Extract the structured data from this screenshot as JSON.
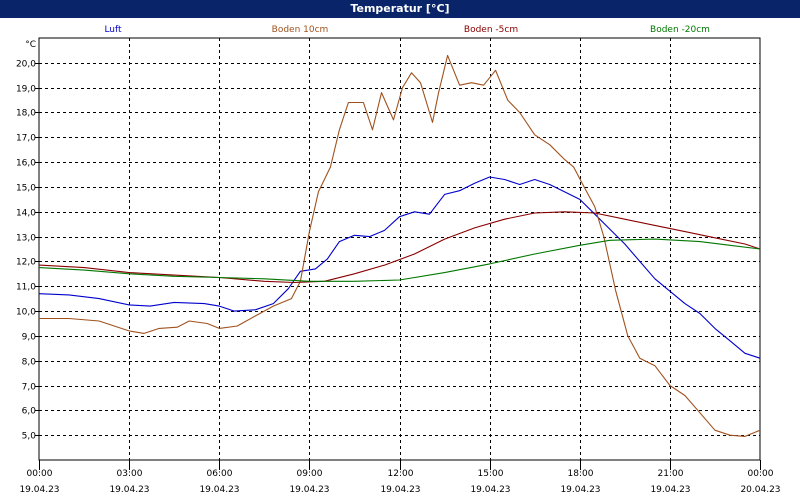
{
  "window": {
    "title": "Temperatur [°C]"
  },
  "chart_data": {
    "type": "line",
    "title": "Temperatur [°C]",
    "ylabel": "°C",
    "ylim": [
      4.0,
      21.0
    ],
    "yticks": [
      "5,0",
      "6,0",
      "7,0",
      "8,0",
      "9,0",
      "10,0",
      "11,0",
      "12,0",
      "13,0",
      "14,0",
      "15,0",
      "16,0",
      "17,0",
      "18,0",
      "19,0",
      "20,0"
    ],
    "ytick_values": [
      5,
      6,
      7,
      8,
      9,
      10,
      11,
      12,
      13,
      14,
      15,
      16,
      17,
      18,
      19,
      20
    ],
    "xlim": [
      0,
      24
    ],
    "xticks": [
      {
        "time": "00:00",
        "date": "19.04.23",
        "hour": 0
      },
      {
        "time": "03:00",
        "date": "19.04.23",
        "hour": 3
      },
      {
        "time": "06:00",
        "date": "19.04.23",
        "hour": 6
      },
      {
        "time": "09:00",
        "date": "19.04.23",
        "hour": 9
      },
      {
        "time": "12:00",
        "date": "19.04.23",
        "hour": 12
      },
      {
        "time": "15:00",
        "date": "19.04.23",
        "hour": 15
      },
      {
        "time": "18:00",
        "date": "19.04.23",
        "hour": 18
      },
      {
        "time": "21:00",
        "date": "19.04.23",
        "hour": 21
      },
      {
        "time": "00:00",
        "date": "20.04.23",
        "hour": 24
      }
    ],
    "grid": true,
    "legend_position": "top",
    "series": [
      {
        "name": "Luft",
        "color": "#0000cc",
        "points": [
          [
            0,
            10.7
          ],
          [
            1,
            10.65
          ],
          [
            2,
            10.5
          ],
          [
            3,
            10.25
          ],
          [
            3.7,
            10.2
          ],
          [
            4.5,
            10.35
          ],
          [
            5.5,
            10.3
          ],
          [
            6,
            10.2
          ],
          [
            6.5,
            10.0
          ],
          [
            7.2,
            10.05
          ],
          [
            7.8,
            10.3
          ],
          [
            8.3,
            10.9
          ],
          [
            8.7,
            11.6
          ],
          [
            9.2,
            11.7
          ],
          [
            9.6,
            12.1
          ],
          [
            10.0,
            12.8
          ],
          [
            10.5,
            13.05
          ],
          [
            11.0,
            13.0
          ],
          [
            11.5,
            13.25
          ],
          [
            12.0,
            13.8
          ],
          [
            12.5,
            14.0
          ],
          [
            13.0,
            13.9
          ],
          [
            13.5,
            14.7
          ],
          [
            14.0,
            14.85
          ],
          [
            14.5,
            15.15
          ],
          [
            15.0,
            15.4
          ],
          [
            15.5,
            15.3
          ],
          [
            16.0,
            15.1
          ],
          [
            16.5,
            15.3
          ],
          [
            17.0,
            15.1
          ],
          [
            17.5,
            14.8
          ],
          [
            18.0,
            14.5
          ],
          [
            18.5,
            13.9
          ],
          [
            19.0,
            13.3
          ],
          [
            19.5,
            12.7
          ],
          [
            20.0,
            12.0
          ],
          [
            20.5,
            11.3
          ],
          [
            21.0,
            10.8
          ],
          [
            21.5,
            10.3
          ],
          [
            22.0,
            9.9
          ],
          [
            22.5,
            9.3
          ],
          [
            23.0,
            8.8
          ],
          [
            23.5,
            8.3
          ],
          [
            24,
            8.1
          ]
        ]
      },
      {
        "name": "Boden 10cm",
        "color": "#a0521e",
        "points": [
          [
            0,
            9.7
          ],
          [
            1,
            9.7
          ],
          [
            2,
            9.6
          ],
          [
            3,
            9.2
          ],
          [
            3.5,
            9.1
          ],
          [
            4.0,
            9.3
          ],
          [
            4.6,
            9.35
          ],
          [
            5.0,
            9.6
          ],
          [
            5.6,
            9.5
          ],
          [
            6.0,
            9.3
          ],
          [
            6.6,
            9.4
          ],
          [
            7.2,
            9.8
          ],
          [
            7.8,
            10.2
          ],
          [
            8.4,
            10.5
          ],
          [
            8.7,
            11.2
          ],
          [
            9.0,
            13.2
          ],
          [
            9.3,
            14.8
          ],
          [
            9.7,
            15.8
          ],
          [
            10.0,
            17.3
          ],
          [
            10.3,
            18.4
          ],
          [
            10.8,
            18.4
          ],
          [
            11.1,
            17.3
          ],
          [
            11.4,
            18.8
          ],
          [
            11.8,
            17.7
          ],
          [
            12.1,
            19.0
          ],
          [
            12.4,
            19.6
          ],
          [
            12.7,
            19.2
          ],
          [
            13.1,
            17.6
          ],
          [
            13.3,
            18.8
          ],
          [
            13.6,
            20.3
          ],
          [
            14.0,
            19.1
          ],
          [
            14.4,
            19.2
          ],
          [
            14.8,
            19.1
          ],
          [
            15.2,
            19.7
          ],
          [
            15.6,
            18.5
          ],
          [
            16.0,
            18.0
          ],
          [
            16.5,
            17.1
          ],
          [
            17.0,
            16.7
          ],
          [
            17.5,
            16.1
          ],
          [
            17.8,
            15.8
          ],
          [
            18.1,
            15.1
          ],
          [
            18.5,
            14.2
          ],
          [
            18.8,
            13.0
          ],
          [
            19.2,
            10.8
          ],
          [
            19.6,
            9.0
          ],
          [
            20.0,
            8.1
          ],
          [
            20.5,
            7.8
          ],
          [
            21.0,
            7.0
          ],
          [
            21.5,
            6.6
          ],
          [
            22.0,
            5.9
          ],
          [
            22.5,
            5.2
          ],
          [
            23.0,
            5.0
          ],
          [
            23.5,
            4.95
          ],
          [
            24,
            5.2
          ]
        ]
      },
      {
        "name": "Boden -5cm",
        "color": "#880000",
        "points": [
          [
            0,
            11.85
          ],
          [
            1.5,
            11.75
          ],
          [
            3,
            11.55
          ],
          [
            4.5,
            11.45
          ],
          [
            6,
            11.35
          ],
          [
            7.5,
            11.2
          ],
          [
            8.5,
            11.15
          ],
          [
            9.5,
            11.2
          ],
          [
            10.5,
            11.5
          ],
          [
            11.5,
            11.85
          ],
          [
            12.5,
            12.3
          ],
          [
            13.5,
            12.9
          ],
          [
            14.5,
            13.35
          ],
          [
            15.5,
            13.7
          ],
          [
            16.5,
            13.95
          ],
          [
            17.5,
            14.0
          ],
          [
            18.5,
            13.95
          ],
          [
            19.5,
            13.7
          ],
          [
            20.5,
            13.45
          ],
          [
            21.5,
            13.2
          ],
          [
            22.5,
            12.95
          ],
          [
            23.5,
            12.7
          ],
          [
            24,
            12.5
          ]
        ]
      },
      {
        "name": "Boden -20cm",
        "color": "#007700",
        "points": [
          [
            0,
            11.75
          ],
          [
            1.5,
            11.65
          ],
          [
            3,
            11.5
          ],
          [
            4.5,
            11.4
          ],
          [
            6,
            11.35
          ],
          [
            7.5,
            11.3
          ],
          [
            9,
            11.2
          ],
          [
            10.5,
            11.2
          ],
          [
            12,
            11.25
          ],
          [
            13.5,
            11.55
          ],
          [
            15,
            11.9
          ],
          [
            16.5,
            12.3
          ],
          [
            18,
            12.65
          ],
          [
            19,
            12.85
          ],
          [
            20.5,
            12.9
          ],
          [
            22,
            12.8
          ],
          [
            23,
            12.65
          ],
          [
            24,
            12.5
          ]
        ]
      }
    ]
  }
}
